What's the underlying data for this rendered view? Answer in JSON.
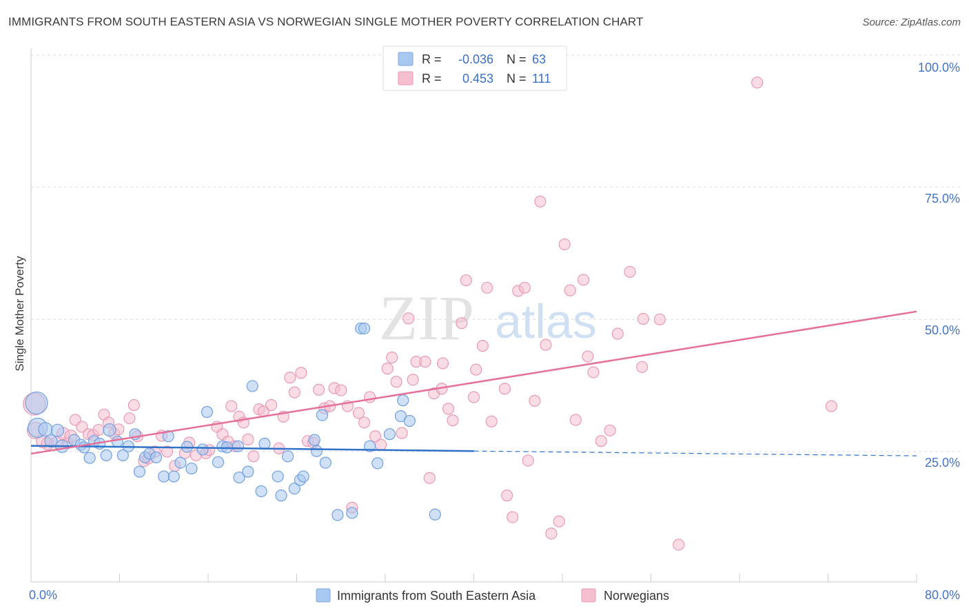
{
  "title": "IMMIGRANTS FROM SOUTH EASTERN ASIA VS NORWEGIAN SINGLE MOTHER POVERTY CORRELATION CHART",
  "source": "Source: ZipAtlas.com",
  "watermark": {
    "zip": "ZIP",
    "atlas": "atlas"
  },
  "legend": {
    "r_label": "R =",
    "n_label": "N =",
    "rows": [
      {
        "r": "-0.036",
        "n": "63",
        "color": "#a9c8f0"
      },
      {
        "r": "0.453",
        "n": "111",
        "color": "#f6bfd0"
      }
    ]
  },
  "bottom_legend": [
    {
      "label": "Immigrants from South Eastern Asia",
      "color": "#a9c8f0"
    },
    {
      "label": "Norwegians",
      "color": "#f6bfd0"
    }
  ],
  "colors": {
    "blue_line": "#2f72c8",
    "pink_line": "#e56f97",
    "blue_fill": "#a9c8f0",
    "pink_fill": "#f6bfd0",
    "tick": "#4472c4"
  },
  "chart_data": {
    "type": "scatter",
    "title": "IMMIGRANTS FROM SOUTH EASTERN ASIA VS NORWEGIAN SINGLE MOTHER POVERTY CORRELATION CHART",
    "xlabel": "",
    "ylabel": "Single Mother Poverty",
    "xlim": [
      0,
      80
    ],
    "ylim": [
      0,
      100
    ],
    "x_tick_labels": [
      "0.0%",
      "80.0%"
    ],
    "y_ticks": [
      25,
      50,
      75,
      100
    ],
    "y_tick_labels": [
      "25.0%",
      "50.0%",
      "75.0%",
      "100.0%"
    ],
    "series": [
      {
        "name": "Immigrants from South Eastern Asia",
        "r": -0.036,
        "n": 63,
        "trend": {
          "x": [
            0,
            40
          ],
          "y": [
            26.1,
            25.1
          ],
          "dashed_to_x": 80,
          "dashed_end_y": 24.2
        },
        "points": [
          [
            0.5,
            34.2,
            16
          ],
          [
            0.6,
            29.5,
            14
          ],
          [
            1.3,
            29.2,
            10
          ],
          [
            2.4,
            29.0,
            9
          ],
          [
            1.8,
            27.0,
            9
          ],
          [
            2.8,
            26.0,
            9
          ],
          [
            3.9,
            27.2,
            8
          ],
          [
            4.5,
            26.3,
            8
          ],
          [
            4.8,
            25.8,
            8
          ],
          [
            5.3,
            23.8,
            8
          ],
          [
            5.7,
            27.0,
            8
          ],
          [
            6.2,
            26.5,
            8
          ],
          [
            6.8,
            24.3,
            8
          ],
          [
            7.1,
            29.1,
            9
          ],
          [
            7.8,
            26.9,
            8
          ],
          [
            8.3,
            24.3,
            8
          ],
          [
            8.8,
            26.0,
            8
          ],
          [
            9.4,
            28.3,
            8
          ],
          [
            9.8,
            21.2,
            8
          ],
          [
            10.3,
            23.9,
            8
          ],
          [
            10.7,
            24.6,
            8
          ],
          [
            11.3,
            23.9,
            8
          ],
          [
            12.4,
            27.9,
            8
          ],
          [
            12.0,
            20.3,
            8
          ],
          [
            12.9,
            20.3,
            8
          ],
          [
            13.5,
            22.9,
            8
          ],
          [
            14.1,
            25.9,
            8
          ],
          [
            14.5,
            21.8,
            8
          ],
          [
            15.5,
            25.4,
            8
          ],
          [
            15.9,
            32.5,
            8
          ],
          [
            16.9,
            23.0,
            8
          ],
          [
            17.3,
            26.0,
            8
          ],
          [
            17.7,
            25.8,
            8
          ],
          [
            18.7,
            26.0,
            8
          ],
          [
            18.8,
            20.1,
            8
          ],
          [
            19.6,
            21.2,
            8
          ],
          [
            20.0,
            37.4,
            8
          ],
          [
            20.8,
            17.5,
            8
          ],
          [
            21.1,
            26.5,
            8
          ],
          [
            22.3,
            20.3,
            8
          ],
          [
            22.6,
            16.7,
            8
          ],
          [
            23.2,
            24.1,
            8
          ],
          [
            23.8,
            18.0,
            8
          ],
          [
            24.3,
            19.6,
            8
          ],
          [
            24.6,
            20.3,
            8
          ],
          [
            25.6,
            27.2,
            8
          ],
          [
            25.8,
            25.1,
            8
          ],
          [
            26.3,
            31.9,
            8
          ],
          [
            26.6,
            22.9,
            8
          ],
          [
            27.7,
            13.0,
            8
          ],
          [
            29.0,
            13.4,
            8
          ],
          [
            29.8,
            48.3,
            8
          ],
          [
            30.1,
            48.3,
            8
          ],
          [
            30.6,
            26.0,
            8
          ],
          [
            31.3,
            22.8,
            8
          ],
          [
            32.4,
            28.3,
            8
          ],
          [
            33.4,
            31.7,
            8
          ],
          [
            33.6,
            34.7,
            8
          ],
          [
            34.2,
            30.8,
            8
          ],
          [
            36.5,
            13.1,
            8
          ]
        ]
      },
      {
        "name": "Norwegians",
        "r": 0.453,
        "n": 111,
        "trend": {
          "x": [
            0,
            80
          ],
          "y": [
            24.6,
            51.5
          ]
        },
        "points": [
          [
            0.3,
            34.0,
            16
          ],
          [
            0.4,
            29.0,
            12
          ],
          [
            1.1,
            27.0,
            10
          ],
          [
            1.5,
            26.5,
            9
          ],
          [
            2.4,
            26.8,
            9
          ],
          [
            2.9,
            28.4,
            9
          ],
          [
            3.3,
            26.6,
            8
          ],
          [
            3.6,
            27.9,
            9
          ],
          [
            4.0,
            31.0,
            8
          ],
          [
            4.6,
            29.7,
            8
          ],
          [
            5.2,
            28.3,
            8
          ],
          [
            5.6,
            28.1,
            8
          ],
          [
            6.1,
            29.1,
            8
          ],
          [
            6.6,
            32.0,
            8
          ],
          [
            7.0,
            30.5,
            8
          ],
          [
            7.5,
            28.4,
            8
          ],
          [
            7.9,
            29.2,
            8
          ],
          [
            8.9,
            31.3,
            8
          ],
          [
            9.3,
            33.8,
            8
          ],
          [
            9.6,
            27.9,
            8
          ],
          [
            10.2,
            23.2,
            8
          ],
          [
            10.6,
            23.7,
            8
          ],
          [
            11.2,
            25.0,
            8
          ],
          [
            11.8,
            28.0,
            8
          ],
          [
            12.3,
            25.0,
            8
          ],
          [
            13.0,
            22.3,
            8
          ],
          [
            13.9,
            24.7,
            8
          ],
          [
            14.3,
            26.7,
            8
          ],
          [
            14.9,
            24.3,
            8
          ],
          [
            15.8,
            24.7,
            8
          ],
          [
            16.1,
            25.3,
            8
          ],
          [
            16.8,
            29.7,
            8
          ],
          [
            17.3,
            28.3,
            8
          ],
          [
            17.8,
            26.9,
            8
          ],
          [
            18.1,
            33.6,
            8
          ],
          [
            18.4,
            26.0,
            8
          ],
          [
            18.8,
            31.6,
            8
          ],
          [
            19.2,
            30.5,
            8
          ],
          [
            19.6,
            27.3,
            8
          ],
          [
            20.1,
            24.1,
            8
          ],
          [
            20.6,
            33.0,
            8
          ],
          [
            21.0,
            32.6,
            8
          ],
          [
            21.7,
            33.8,
            8
          ],
          [
            22.4,
            25.6,
            8
          ],
          [
            22.8,
            31.6,
            8
          ],
          [
            23.4,
            39.0,
            8
          ],
          [
            23.8,
            36.2,
            8
          ],
          [
            24.4,
            39.9,
            8
          ],
          [
            25.0,
            27.0,
            8
          ],
          [
            25.5,
            26.7,
            8
          ],
          [
            26.0,
            36.7,
            8
          ],
          [
            26.5,
            33.2,
            8
          ],
          [
            27.0,
            33.6,
            8
          ],
          [
            27.4,
            37.0,
            8
          ],
          [
            28.0,
            36.6,
            8
          ],
          [
            28.6,
            33.6,
            8
          ],
          [
            29.0,
            14.4,
            8
          ],
          [
            29.6,
            32.3,
            8
          ],
          [
            30.1,
            30.5,
            8
          ],
          [
            30.6,
            35.3,
            8
          ],
          [
            31.1,
            27.9,
            8
          ],
          [
            31.6,
            26.3,
            8
          ],
          [
            32.2,
            40.7,
            8
          ],
          [
            32.6,
            42.8,
            8
          ],
          [
            33.0,
            38.2,
            8
          ],
          [
            33.5,
            28.5,
            8
          ],
          [
            34.1,
            50.2,
            8
          ],
          [
            34.5,
            38.6,
            8
          ],
          [
            34.8,
            42.0,
            8
          ],
          [
            35.6,
            42.0,
            8
          ],
          [
            36.0,
            20.0,
            8
          ],
          [
            36.4,
            36.0,
            8
          ],
          [
            37.1,
            36.9,
            8
          ],
          [
            37.2,
            41.7,
            8
          ],
          [
            37.7,
            33.1,
            8
          ],
          [
            38.1,
            30.9,
            8
          ],
          [
            38.9,
            49.3,
            8
          ],
          [
            39.3,
            57.4,
            8
          ],
          [
            40.0,
            35.3,
            8
          ],
          [
            40.2,
            40.5,
            8
          ],
          [
            40.8,
            45.0,
            8
          ],
          [
            41.2,
            56.0,
            8
          ],
          [
            41.6,
            30.7,
            8
          ],
          [
            42.8,
            36.9,
            8
          ],
          [
            43.0,
            16.7,
            8
          ],
          [
            43.5,
            12.6,
            8
          ],
          [
            44.0,
            55.4,
            8
          ],
          [
            44.6,
            56.0,
            8
          ],
          [
            44.9,
            23.3,
            8
          ],
          [
            45.5,
            34.6,
            8
          ],
          [
            46.0,
            72.3,
            8
          ],
          [
            46.5,
            45.2,
            8
          ],
          [
            47.0,
            9.5,
            8
          ],
          [
            47.7,
            11.8,
            8
          ],
          [
            48.2,
            64.2,
            8
          ],
          [
            48.7,
            55.5,
            8
          ],
          [
            49.2,
            31.0,
            8
          ],
          [
            49.9,
            57.5,
            8
          ],
          [
            50.3,
            43.0,
            8
          ],
          [
            50.8,
            40.0,
            8
          ],
          [
            51.5,
            27.0,
            8
          ],
          [
            52.3,
            29.0,
            8
          ],
          [
            53.0,
            47.3,
            8
          ],
          [
            54.1,
            59.0,
            8
          ],
          [
            55.2,
            41.0,
            8
          ],
          [
            55.3,
            50.1,
            8
          ],
          [
            56.8,
            50.0,
            8
          ],
          [
            58.5,
            7.4,
            8
          ],
          [
            65.6,
            94.8,
            8
          ],
          [
            72.3,
            33.6,
            8
          ]
        ]
      }
    ]
  }
}
